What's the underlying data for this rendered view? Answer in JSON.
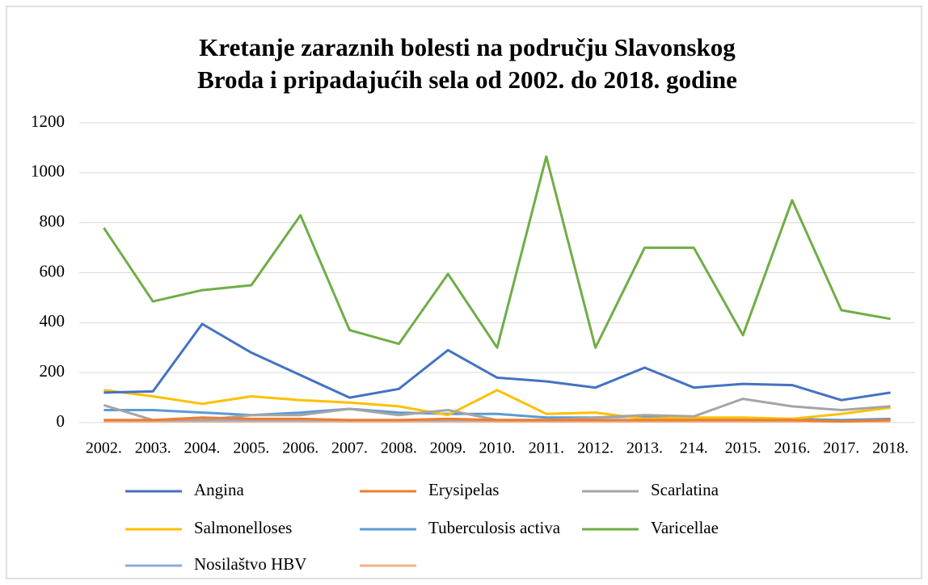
{
  "chart_data": {
    "type": "line",
    "title": [
      "Kretanje zaraznih bolesti na području Slavonskog",
      "Broda i pripadajućih sela od 2002. do 2018. godine"
    ],
    "categories": [
      "2002.",
      "2003.",
      "2004.",
      "2005.",
      "2006.",
      "2007.",
      "2008.",
      "2009.",
      "2010.",
      "2011.",
      "2012.",
      "2013.",
      "214.",
      "2015.",
      "2016.",
      "2017.",
      "2018."
    ],
    "ylim": [
      0,
      1200
    ],
    "yticks": [
      0,
      200,
      400,
      600,
      800,
      1000,
      1200
    ],
    "grid": true,
    "legend": "bottom",
    "series": [
      {
        "name": "Angina",
        "color": "#4472c4",
        "values": [
          120,
          125,
          395,
          280,
          190,
          100,
          135,
          290,
          180,
          165,
          140,
          220,
          140,
          155,
          150,
          90,
          120
        ]
      },
      {
        "name": "Erysipelas",
        "color": "#ed7d31",
        "values": [
          10,
          10,
          20,
          15,
          15,
          10,
          10,
          15,
          10,
          10,
          10,
          10,
          10,
          10,
          10,
          5,
          10
        ]
      },
      {
        "name": "Scarlatina",
        "color": "#a5a5a5",
        "values": [
          70,
          10,
          10,
          30,
          30,
          55,
          30,
          50,
          10,
          10,
          20,
          30,
          25,
          95,
          65,
          50,
          65
        ]
      },
      {
        "name": "Salmonelloses",
        "color": "#ffc000",
        "values": [
          130,
          105,
          75,
          105,
          90,
          80,
          65,
          30,
          130,
          35,
          40,
          15,
          20,
          20,
          15,
          35,
          60
        ]
      },
      {
        "name": "Tuberculosis activa",
        "color": "#5b9bd5",
        "values": [
          50,
          50,
          40,
          30,
          40,
          55,
          40,
          35,
          35,
          20,
          20,
          25,
          20,
          15,
          15,
          10,
          15
        ]
      },
      {
        "name": "Varicellae",
        "color": "#70ad47",
        "values": [
          780,
          485,
          530,
          550,
          830,
          370,
          315,
          595,
          300,
          1065,
          300,
          700,
          700,
          350,
          890,
          450,
          415
        ]
      },
      {
        "name": "Nosilaštvo HBV",
        "color": "#8faadc",
        "values": [
          10,
          10,
          10,
          10,
          10,
          10,
          10,
          10,
          10,
          10,
          10,
          10,
          10,
          10,
          10,
          10,
          10
        ]
      },
      {
        "color": "#f4b183",
        "values": [
          5,
          5,
          5,
          5,
          5,
          5,
          5,
          5,
          5,
          5,
          5,
          5,
          5,
          5,
          5,
          5,
          5
        ]
      }
    ]
  }
}
